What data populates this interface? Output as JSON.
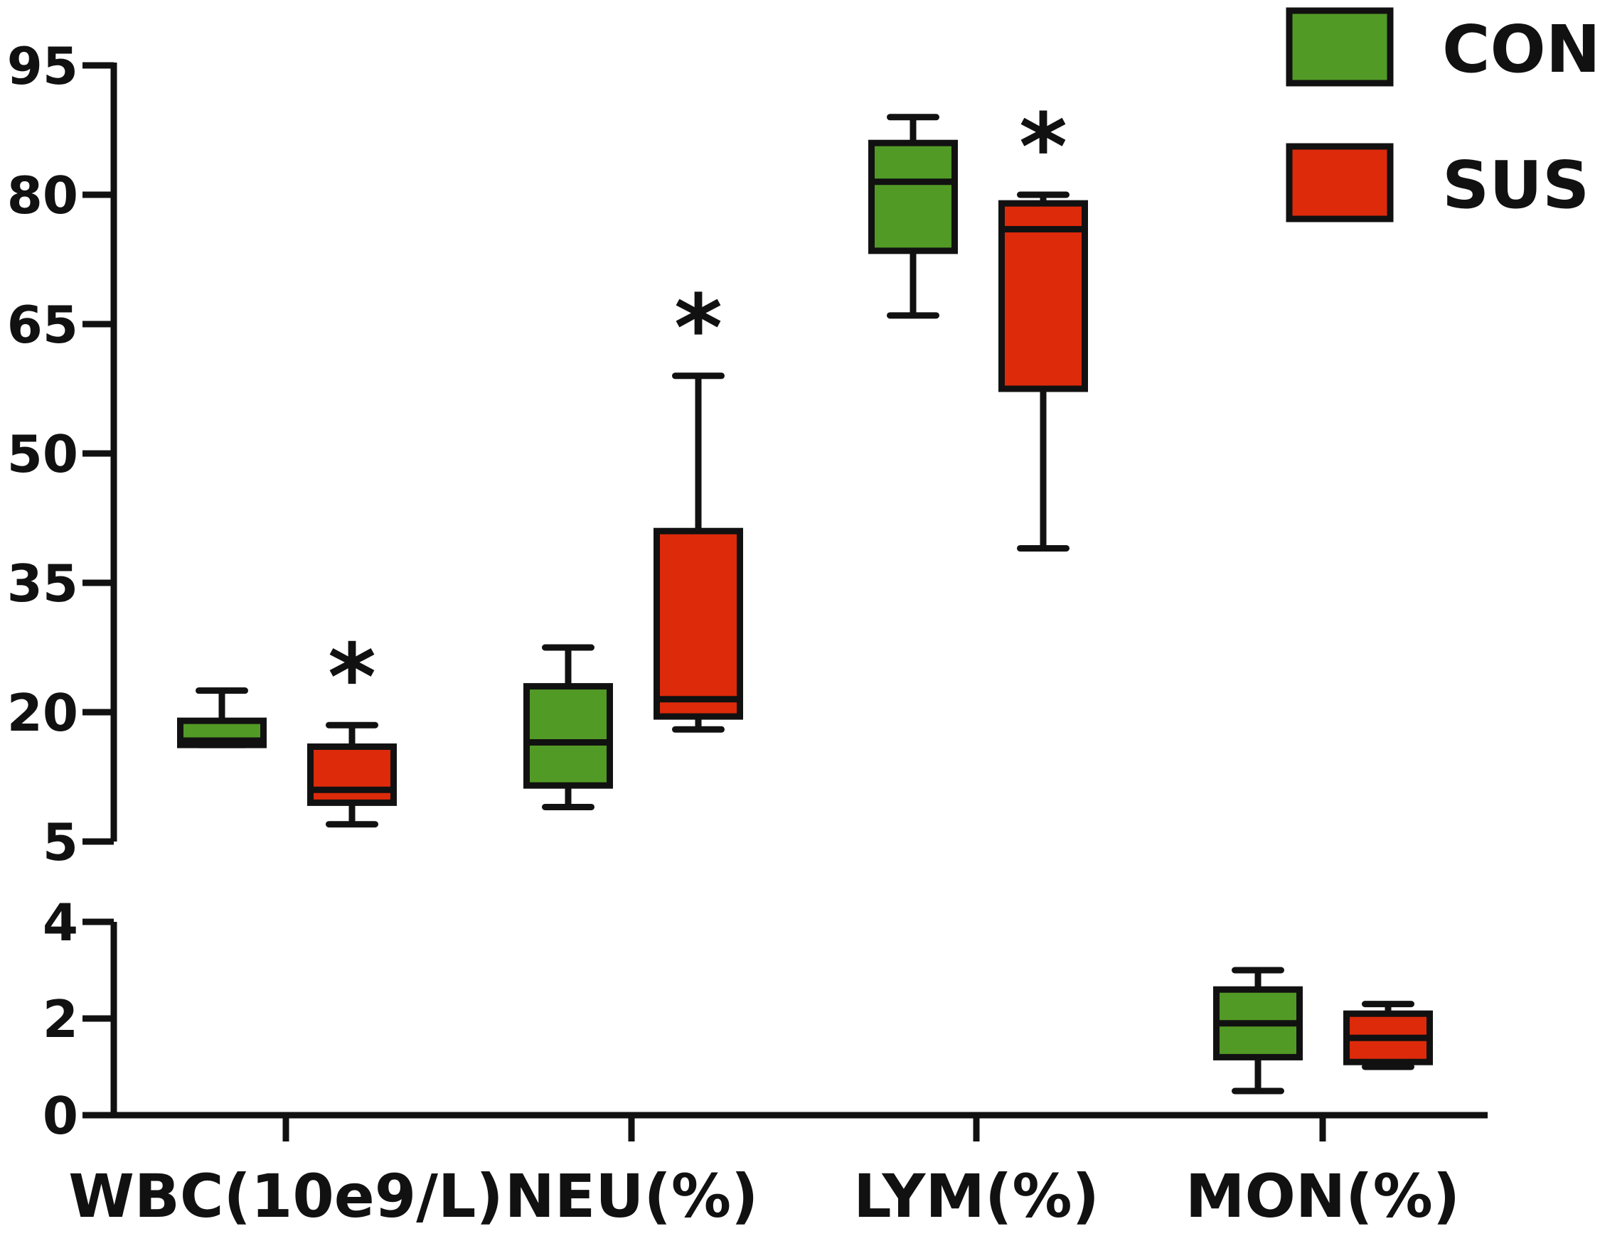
{
  "chart_data": {
    "type": "box",
    "broken_y_axis": true,
    "categories": [
      "WBC(10e9/L)",
      "NEU(%)",
      "LYM(%)",
      "MON(%)"
    ],
    "y_upper": {
      "ylim": [
        5,
        95
      ],
      "ticks": [
        "95",
        "80",
        "65",
        "50",
        "35",
        "20",
        "5"
      ]
    },
    "y_lower": {
      "ylim": [
        0,
        4
      ],
      "ticks": [
        "4",
        "2",
        "0"
      ]
    },
    "legend": {
      "placement": "top-right",
      "entries": [
        "CON",
        "SUS"
      ]
    },
    "colors": {
      "CON": "#529a26",
      "SUS": "#dd2a0a",
      "stroke": "#111111"
    },
    "significance_marker": "*",
    "series": [
      {
        "name": "CON",
        "boxes": [
          {
            "category": "WBC(10e9/L)",
            "min": 16.2,
            "q1": 16.2,
            "median": 16.7,
            "q3": 19.0,
            "max": 22.5,
            "segment": "upper",
            "sig": false
          },
          {
            "category": "NEU(%)",
            "min": 9.0,
            "q1": 11.5,
            "median": 16.5,
            "q3": 23.0,
            "max": 27.5,
            "segment": "upper",
            "sig": false
          },
          {
            "category": "LYM(%)",
            "min": 66.0,
            "q1": 73.5,
            "median": 81.5,
            "q3": 86.0,
            "max": 89.0,
            "segment": "upper",
            "sig": false
          },
          {
            "category": "MON(%)",
            "min": 0.5,
            "q1": 1.2,
            "median": 1.9,
            "q3": 2.6,
            "max": 3.0,
            "segment": "lower",
            "sig": false
          }
        ]
      },
      {
        "name": "SUS",
        "boxes": [
          {
            "category": "WBC(10e9/L)",
            "min": 7.0,
            "q1": 9.5,
            "median": 11.0,
            "q3": 16.0,
            "max": 18.5,
            "segment": "upper",
            "sig": true
          },
          {
            "category": "NEU(%)",
            "min": 18.0,
            "q1": 19.5,
            "median": 21.5,
            "q3": 41.0,
            "max": 59.0,
            "segment": "upper",
            "sig": true
          },
          {
            "category": "LYM(%)",
            "min": 39.0,
            "q1": 57.5,
            "median": 76.0,
            "q3": 79.0,
            "max": 80.0,
            "segment": "upper",
            "sig": true
          },
          {
            "category": "MON(%)",
            "min": 1.0,
            "q1": 1.1,
            "median": 1.6,
            "q3": 2.1,
            "max": 2.3,
            "segment": "lower",
            "sig": false
          }
        ]
      }
    ]
  }
}
